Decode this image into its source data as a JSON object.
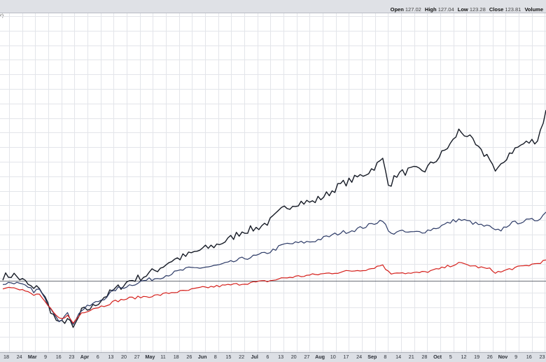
{
  "header": {
    "open_label": "Open",
    "open_value": "127.02",
    "high_label": "High",
    "high_value": "127.04",
    "low_label": "Low",
    "low_value": "123.28",
    "close_label": "Close",
    "close_value": "123.81",
    "volume_label": "Volume",
    "series_label_fragment": "c)"
  },
  "chart_data": {
    "type": "line",
    "grid": true,
    "x_ticks": [
      {
        "label": "18",
        "bold": false
      },
      {
        "label": "24",
        "bold": false
      },
      {
        "label": "Mar",
        "bold": true
      },
      {
        "label": "9",
        "bold": false
      },
      {
        "label": "16",
        "bold": false
      },
      {
        "label": "23",
        "bold": false
      },
      {
        "label": "Apr",
        "bold": true
      },
      {
        "label": "6",
        "bold": false
      },
      {
        "label": "13",
        "bold": false
      },
      {
        "label": "20",
        "bold": false
      },
      {
        "label": "27",
        "bold": false
      },
      {
        "label": "May",
        "bold": true
      },
      {
        "label": "11",
        "bold": false
      },
      {
        "label": "18",
        "bold": false
      },
      {
        "label": "26",
        "bold": false
      },
      {
        "label": "Jun",
        "bold": true
      },
      {
        "label": "8",
        "bold": false
      },
      {
        "label": "15",
        "bold": false
      },
      {
        "label": "22",
        "bold": false
      },
      {
        "label": "Jul",
        "bold": true
      },
      {
        "label": "6",
        "bold": false
      },
      {
        "label": "13",
        "bold": false
      },
      {
        "label": "20",
        "bold": false
      },
      {
        "label": "27",
        "bold": false
      },
      {
        "label": "Aug",
        "bold": true
      },
      {
        "label": "10",
        "bold": false
      },
      {
        "label": "17",
        "bold": false
      },
      {
        "label": "24",
        "bold": false
      },
      {
        "label": "Sep",
        "bold": true
      },
      {
        "label": "8",
        "bold": false
      },
      {
        "label": "14",
        "bold": false
      },
      {
        "label": "21",
        "bold": false
      },
      {
        "label": "28",
        "bold": false
      },
      {
        "label": "Oct",
        "bold": true
      },
      {
        "label": "5",
        "bold": false
      },
      {
        "label": "12",
        "bold": false
      },
      {
        "label": "19",
        "bold": false
      },
      {
        "label": "26",
        "bold": false
      },
      {
        "label": "Nov",
        "bold": true
      },
      {
        "label": "9",
        "bold": false
      },
      {
        "label": "16",
        "bold": false
      },
      {
        "label": "23",
        "bold": false
      }
    ],
    "x_range": [
      0,
      193
    ],
    "y_range": [
      50,
      150
    ],
    "baseline": 100,
    "series": [
      {
        "color": "#151a25",
        "keypoints": [
          [
            0,
            103
          ],
          [
            4,
            104
          ],
          [
            8,
            99
          ],
          [
            11,
            94
          ],
          [
            13,
            96
          ],
          [
            15,
            88
          ],
          [
            18,
            76
          ],
          [
            20,
            70
          ],
          [
            23,
            74
          ],
          [
            25,
            67
          ],
          [
            28,
            79
          ],
          [
            32,
            82
          ],
          [
            36,
            89
          ],
          [
            40,
            94
          ],
          [
            45,
            100
          ],
          [
            50,
            103
          ],
          [
            55,
            108
          ],
          [
            60,
            114
          ],
          [
            65,
            117
          ],
          [
            70,
            121
          ],
          [
            75,
            124
          ],
          [
            80,
            128
          ],
          [
            85,
            134
          ],
          [
            90,
            136
          ],
          [
            95,
            141
          ],
          [
            100,
            150
          ],
          [
            105,
            154
          ],
          [
            110,
            154
          ],
          [
            115,
            159
          ],
          [
            120,
            166
          ],
          [
            125,
            170
          ],
          [
            130,
            175
          ],
          [
            135,
            183
          ],
          [
            137,
            168
          ],
          [
            138,
            167
          ],
          [
            140,
            173
          ],
          [
            145,
            176
          ],
          [
            150,
            176
          ],
          [
            155,
            185
          ],
          [
            160,
            196
          ],
          [
            162,
            203
          ],
          [
            165,
            200
          ],
          [
            170,
            188
          ],
          [
            173,
            185
          ],
          [
            175,
            175
          ],
          [
            177,
            178
          ],
          [
            180,
            188
          ],
          [
            185,
            194
          ],
          [
            190,
            197
          ],
          [
            193,
            216
          ]
        ]
      },
      {
        "color": "#2c3a66",
        "keypoints": [
          [
            0,
            98
          ],
          [
            4,
            99
          ],
          [
            8,
            96
          ],
          [
            11,
            93
          ],
          [
            13,
            94
          ],
          [
            15,
            87
          ],
          [
            18,
            79
          ],
          [
            20,
            73
          ],
          [
            23,
            77
          ],
          [
            25,
            71
          ],
          [
            28,
            80
          ],
          [
            32,
            84
          ],
          [
            36,
            88
          ],
          [
            40,
            94
          ],
          [
            45,
            97
          ],
          [
            50,
            100
          ],
          [
            55,
            102
          ],
          [
            60,
            105
          ],
          [
            65,
            108
          ],
          [
            70,
            109
          ],
          [
            75,
            110
          ],
          [
            80,
            112
          ],
          [
            85,
            115
          ],
          [
            90,
            117
          ],
          [
            95,
            120
          ],
          [
            100,
            125
          ],
          [
            105,
            126
          ],
          [
            110,
            127
          ],
          [
            115,
            130
          ],
          [
            120,
            133
          ],
          [
            125,
            135
          ],
          [
            130,
            138
          ],
          [
            135,
            142
          ],
          [
            137,
            134
          ],
          [
            138,
            132
          ],
          [
            140,
            134
          ],
          [
            145,
            133
          ],
          [
            150,
            134
          ],
          [
            155,
            137
          ],
          [
            160,
            141
          ],
          [
            162,
            142
          ],
          [
            165,
            141
          ],
          [
            170,
            138
          ],
          [
            173,
            137
          ],
          [
            175,
            134
          ],
          [
            177,
            135
          ],
          [
            180,
            139
          ],
          [
            185,
            141
          ],
          [
            190,
            142
          ],
          [
            193,
            147
          ]
        ]
      },
      {
        "color": "#d5201c",
        "keypoints": [
          [
            0,
            95
          ],
          [
            4,
            96
          ],
          [
            8,
            93
          ],
          [
            11,
            90
          ],
          [
            13,
            91
          ],
          [
            15,
            85
          ],
          [
            18,
            78
          ],
          [
            20,
            74
          ],
          [
            23,
            76
          ],
          [
            25,
            71
          ],
          [
            28,
            78
          ],
          [
            32,
            81
          ],
          [
            36,
            83
          ],
          [
            40,
            86
          ],
          [
            45,
            88
          ],
          [
            50,
            89
          ],
          [
            55,
            90
          ],
          [
            60,
            92
          ],
          [
            65,
            93
          ],
          [
            70,
            95
          ],
          [
            75,
            96
          ],
          [
            80,
            97
          ],
          [
            85,
            98
          ],
          [
            90,
            99
          ],
          [
            95,
            100
          ],
          [
            100,
            102
          ],
          [
            105,
            103
          ],
          [
            110,
            104
          ],
          [
            115,
            105
          ],
          [
            120,
            106
          ],
          [
            125,
            107
          ],
          [
            130,
            108
          ],
          [
            135,
            111
          ],
          [
            137,
            106
          ],
          [
            138,
            105
          ],
          [
            140,
            106
          ],
          [
            145,
            105
          ],
          [
            150,
            106
          ],
          [
            155,
            108
          ],
          [
            160,
            111
          ],
          [
            162,
            112
          ],
          [
            165,
            111
          ],
          [
            170,
            109
          ],
          [
            173,
            108
          ],
          [
            175,
            106
          ],
          [
            177,
            106
          ],
          [
            180,
            108
          ],
          [
            185,
            110
          ],
          [
            190,
            112
          ],
          [
            193,
            114
          ]
        ]
      }
    ]
  }
}
